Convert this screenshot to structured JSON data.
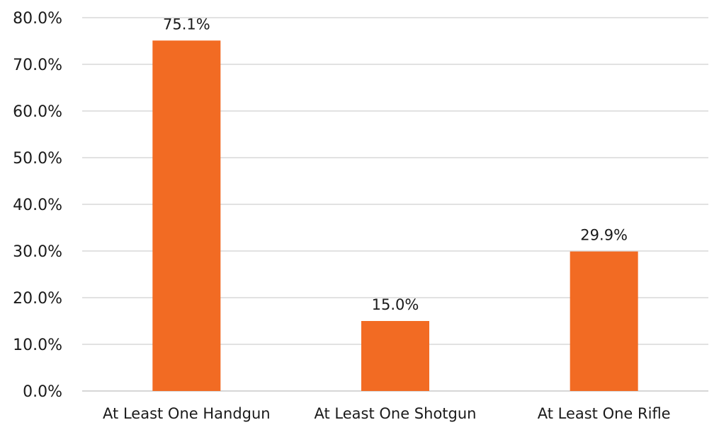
{
  "chart_data": {
    "type": "bar",
    "title": "",
    "xlabel": "",
    "ylabel": "",
    "categories": [
      "At Least One Handgun",
      "At Least One Shotgun",
      "At Least One Rifle"
    ],
    "values": [
      75.1,
      15.0,
      29.9
    ],
    "data_labels": [
      "75.1%",
      "15.0%",
      "29.9%"
    ],
    "ylim": [
      0,
      80
    ],
    "yticks": [
      0,
      10,
      20,
      30,
      40,
      50,
      60,
      70,
      80
    ],
    "ytick_labels": [
      "0.0%",
      "10.0%",
      "20.0%",
      "30.0%",
      "40.0%",
      "50.0%",
      "60.0%",
      "70.0%",
      "80.0%"
    ],
    "grid": true,
    "legend": "none",
    "bar_color": "#F26B23"
  }
}
